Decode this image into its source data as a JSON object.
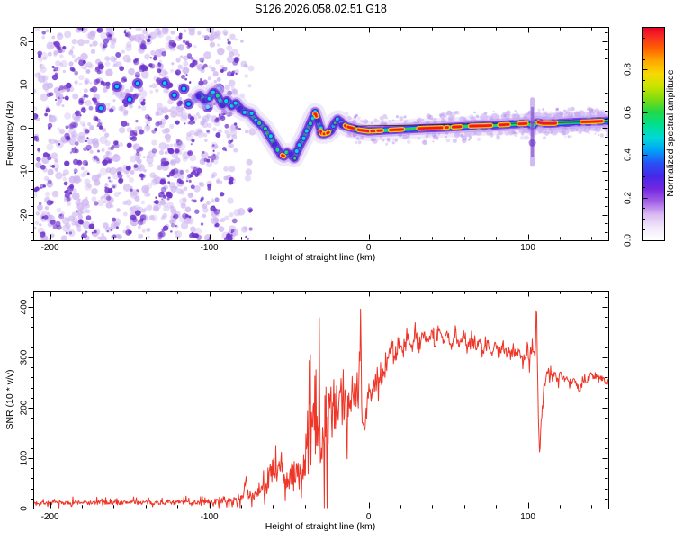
{
  "title": "S126.2026.058.02.51.G18",
  "chart_data": [
    {
      "type": "heatmap",
      "name": "doppler-spectrogram",
      "xlabel": "Height of straight line (km)",
      "ylabel": "Frequency (Hz)",
      "xlim": [
        -210.5,
        150.5
      ],
      "ylim": [
        -26,
        23
      ],
      "x_ticks": [
        {
          "label": "-200",
          "value": -200
        },
        {
          "label": "-100",
          "value": -100
        },
        {
          "label": "0",
          "value": 0
        },
        {
          "label": "100",
          "value": 100
        }
      ],
      "y_ticks": [
        {
          "label": "20",
          "value": 20
        },
        {
          "label": "10",
          "value": 10
        },
        {
          "label": "0",
          "value": 0
        },
        {
          "label": "-10",
          "value": -10
        },
        {
          "label": "-20",
          "value": -20
        }
      ],
      "x_minor_step": 20,
      "y_minor_step": 2,
      "colorbar": {
        "label": "Normalized spectral amplitude",
        "ticks": [
          {
            "label": "0.0",
            "value": 0.0
          },
          {
            "label": "0.2",
            "value": 0.2
          },
          {
            "label": "0.4",
            "value": 0.4
          },
          {
            "label": "0.6",
            "value": 0.6
          },
          {
            "label": "0.8",
            "value": 0.8
          }
        ],
        "minor_step": 0.05,
        "range": [
          0,
          1
        ],
        "stops": [
          {
            "p": 0.0,
            "c": "#ffffff"
          },
          {
            "p": 0.06,
            "c": "#f2e8fb"
          },
          {
            "p": 0.12,
            "c": "#d9bcf2"
          },
          {
            "p": 0.18,
            "c": "#a560e8"
          },
          {
            "p": 0.24,
            "c": "#7428e0"
          },
          {
            "p": 0.3,
            "c": "#4528e8"
          },
          {
            "p": 0.36,
            "c": "#2850f5"
          },
          {
            "p": 0.42,
            "c": "#00a0f8"
          },
          {
            "p": 0.48,
            "c": "#00d8d8"
          },
          {
            "p": 0.54,
            "c": "#00e090"
          },
          {
            "p": 0.6,
            "c": "#20d848"
          },
          {
            "p": 0.66,
            "c": "#7ddc10"
          },
          {
            "p": 0.72,
            "c": "#c8e400"
          },
          {
            "p": 0.78,
            "c": "#f8d800"
          },
          {
            "p": 0.84,
            "c": "#ffa800"
          },
          {
            "p": 0.9,
            "c": "#ff6000"
          },
          {
            "p": 0.95,
            "c": "#f83020"
          },
          {
            "p": 1.0,
            "c": "#e80028"
          }
        ]
      },
      "noise_region": {
        "x_range": [
          -210,
          -72
        ],
        "fade_start": -95,
        "light_count": 820,
        "dark_count": 300,
        "light_color": "#cdb4ee",
        "dark_color": "#7b3fd2"
      },
      "strong_blobs": [
        [
          -168,
          4.5
        ],
        [
          -158,
          9.5
        ],
        [
          -150,
          6.5
        ],
        [
          -145,
          10.2
        ],
        [
          -128,
          10.3
        ],
        [
          -122,
          7.5
        ],
        [
          -116,
          9
        ],
        [
          -113,
          5.5
        ],
        [
          -108,
          6.8
        ],
        [
          -101,
          4.8
        ],
        [
          -98,
          7.8
        ],
        [
          -94,
          9
        ]
      ],
      "ridge_path": [
        [
          -106,
          7.5
        ],
        [
          -103,
          6.5
        ],
        [
          -100,
          7
        ],
        [
          -97,
          8.2
        ],
        [
          -95,
          7.5
        ],
        [
          -92,
          5.5
        ],
        [
          -89,
          6.3
        ],
        [
          -86,
          5
        ],
        [
          -83,
          5.6
        ],
        [
          -80,
          4.2
        ],
        [
          -77,
          3.6
        ],
        [
          -74,
          3.2
        ],
        [
          -71,
          1.8
        ],
        [
          -68,
          0.8
        ],
        [
          -65,
          -0.3
        ],
        [
          -62,
          -2.2
        ],
        [
          -59,
          -3.8
        ],
        [
          -57,
          -5
        ],
        [
          -55,
          -6.2
        ],
        [
          -53,
          -6.6
        ],
        [
          -51,
          -5.8
        ],
        [
          -49,
          -6.2
        ],
        [
          -47,
          -6.9
        ],
        [
          -45,
          -5.6
        ],
        [
          -43,
          -4
        ],
        [
          -41,
          -2.6
        ],
        [
          -39,
          -1
        ],
        [
          -37,
          0.8
        ],
        [
          -35,
          2.4
        ],
        [
          -33.5,
          3.4
        ],
        [
          -32,
          1.8
        ],
        [
          -30.5,
          -0.2
        ],
        [
          -29.5,
          -1.4
        ],
        [
          -27.5,
          -1.4
        ],
        [
          -25.5,
          -1.2
        ],
        [
          -23.5,
          -0.6
        ],
        [
          -22,
          0.6
        ],
        [
          -20.5,
          1.4
        ],
        [
          -19,
          1.8
        ],
        [
          -17.5,
          1.4
        ],
        [
          -16,
          0.8
        ],
        [
          -14,
          0.3
        ],
        [
          -12,
          0.1
        ],
        [
          -10,
          -0.1
        ],
        [
          -8,
          -0.3
        ],
        [
          -6,
          -0.5
        ],
        [
          -4,
          -0.6
        ],
        [
          -2,
          -0.7
        ],
        [
          0,
          -0.8
        ],
        [
          5,
          -0.7
        ],
        [
          10,
          -0.6
        ],
        [
          15,
          -0.5
        ],
        [
          20,
          -0.4
        ],
        [
          25,
          -0.3
        ],
        [
          30,
          -0.2
        ],
        [
          35,
          -0.1
        ],
        [
          40,
          -0.05
        ],
        [
          45,
          0
        ],
        [
          50,
          0.1
        ],
        [
          55,
          0.2
        ],
        [
          60,
          0.3
        ],
        [
          65,
          0.4
        ],
        [
          70,
          0.45
        ],
        [
          75,
          0.5
        ],
        [
          80,
          0.6
        ],
        [
          85,
          0.7
        ],
        [
          90,
          0.8
        ],
        [
          95,
          0.9
        ],
        [
          100,
          1
        ],
        [
          101.5,
          0.7
        ],
        [
          103,
          0.4
        ],
        [
          104.5,
          0.8
        ],
        [
          106,
          1.3
        ],
        [
          108,
          1.1
        ],
        [
          110,
          1
        ],
        [
          115,
          1
        ],
        [
          120,
          1.1
        ],
        [
          125,
          1.2
        ],
        [
          130,
          1.3
        ],
        [
          135,
          1.35
        ],
        [
          140,
          1.4
        ],
        [
          145,
          1.5
        ],
        [
          151,
          1.6
        ]
      ],
      "hotspots": [
        [
          -54.2,
          -53.2
        ],
        [
          -33.8,
          -32.8
        ],
        [
          -30.1,
          -29.1
        ],
        [
          -28,
          -27.2
        ],
        [
          -25.9,
          -25.1
        ],
        [
          -14.8,
          -13.6
        ],
        [
          -12.8,
          -9.6
        ],
        [
          -6.4,
          0.6
        ],
        [
          1.8,
          4.6
        ],
        [
          5.8,
          8.2
        ],
        [
          13.6,
          21.4
        ],
        [
          31.4,
          46
        ],
        [
          48.6,
          49.6
        ],
        [
          53,
          57.8
        ],
        [
          63.8,
          76.8
        ],
        [
          82.2,
          87.8
        ],
        [
          94.5,
          99
        ],
        [
          106.5,
          117.5
        ],
        [
          134,
          146.5
        ]
      ],
      "smear": {
        "x": 102.8,
        "hz_top": 6.5,
        "hz_bottom": -8.5
      },
      "fit_line": {
        "from": [
          -13,
          0.35
        ],
        "to": [
          151,
          1.4
        ]
      },
      "seed": 42
    },
    {
      "type": "line",
      "name": "snr-profile",
      "xlabel": "Height of straight line (km)",
      "ylabel": "SNR (10 * v/v)",
      "xlim": [
        -210.5,
        150.5
      ],
      "ylim": [
        0,
        432
      ],
      "x_ticks": [
        {
          "label": "-200",
          "value": -200
        },
        {
          "label": "-100",
          "value": -100
        },
        {
          "label": "0",
          "value": 0
        },
        {
          "label": "100",
          "value": 100
        }
      ],
      "y_ticks": [
        {
          "label": "0",
          "value": 0
        },
        {
          "label": "100",
          "value": 100
        },
        {
          "label": "200",
          "value": 200
        },
        {
          "label": "300",
          "value": 300
        },
        {
          "label": "400",
          "value": 400
        }
      ],
      "x_minor_step": 20,
      "y_minor_step": 20,
      "line_color": "#ee3527",
      "step_km": 0.35,
      "seed": 7,
      "points": [
        [
          -210,
          11,
          6
        ],
        [
          -205,
          12,
          6
        ],
        [
          -200,
          11,
          6
        ],
        [
          -195,
          12,
          7
        ],
        [
          -190,
          11,
          6
        ],
        [
          -185,
          12,
          7
        ],
        [
          -180,
          12,
          6
        ],
        [
          -175,
          11,
          6
        ],
        [
          -170,
          12,
          7
        ],
        [
          -165,
          12,
          6
        ],
        [
          -160,
          12,
          7
        ],
        [
          -155,
          11,
          6
        ],
        [
          -150,
          13,
          7
        ],
        [
          -145,
          12,
          6
        ],
        [
          -140,
          12,
          7
        ],
        [
          -135,
          12,
          6
        ],
        [
          -130,
          12,
          7
        ],
        [
          -125,
          13,
          7
        ],
        [
          -120,
          12,
          7
        ],
        [
          -115,
          13,
          7
        ],
        [
          -110,
          12,
          7
        ],
        [
          -105,
          13,
          8
        ],
        [
          -100,
          13,
          8
        ],
        [
          -95,
          14,
          9
        ],
        [
          -90,
          14,
          9
        ],
        [
          -85,
          15,
          10
        ],
        [
          -81,
          17,
          11
        ],
        [
          -78.5,
          30,
          18
        ],
        [
          -77,
          58,
          14
        ],
        [
          -75.5,
          24,
          14
        ],
        [
          -73,
          26,
          16
        ],
        [
          -70,
          34,
          20
        ],
        [
          -67.5,
          48,
          28
        ],
        [
          -65,
          38,
          24
        ],
        [
          -62.5,
          60,
          36
        ],
        [
          -60,
          78,
          40
        ],
        [
          -57.5,
          62,
          40
        ],
        [
          -55,
          92,
          38
        ],
        [
          -53,
          60,
          34
        ],
        [
          -51,
          48,
          30
        ],
        [
          -49,
          58,
          34
        ],
        [
          -47,
          76,
          42
        ],
        [
          -45,
          70,
          44
        ],
        [
          -43,
          62,
          40
        ],
        [
          -41,
          80,
          52
        ],
        [
          -39,
          110,
          70
        ],
        [
          -37,
          140,
          100
        ],
        [
          -35,
          160,
          120
        ],
        [
          -33,
          185,
          135
        ],
        [
          -31,
          175,
          140
        ],
        [
          -29,
          180,
          130
        ],
        [
          -27,
          172,
          130
        ],
        [
          -25,
          180,
          122
        ],
        [
          -23,
          188,
          112
        ],
        [
          -21,
          186,
          100
        ],
        [
          -19,
          198,
          90
        ],
        [
          -17,
          204,
          84
        ],
        [
          -15,
          212,
          76
        ],
        [
          -13,
          218,
          70
        ],
        [
          -11,
          232,
          60
        ],
        [
          -9,
          228,
          58
        ],
        [
          -7,
          248,
          52
        ],
        [
          -5.6,
          300,
          50
        ],
        [
          -5,
          406,
          4
        ],
        [
          -4.4,
          210,
          46
        ],
        [
          -3.2,
          148,
          32
        ],
        [
          -2,
          176,
          38
        ],
        [
          -1,
          202,
          38
        ],
        [
          0,
          220,
          34
        ],
        [
          2,
          234,
          30
        ],
        [
          4,
          248,
          30
        ],
        [
          6,
          260,
          28
        ],
        [
          8,
          254,
          28
        ],
        [
          10,
          270,
          26
        ],
        [
          12,
          292,
          22
        ],
        [
          14.5,
          328,
          16
        ],
        [
          17,
          300,
          20
        ],
        [
          19.5,
          334,
          16
        ],
        [
          22,
          306,
          20
        ],
        [
          24.5,
          344,
          16
        ],
        [
          27,
          316,
          18
        ],
        [
          29.5,
          350,
          14
        ],
        [
          32,
          320,
          18
        ],
        [
          34.5,
          354,
          14
        ],
        [
          37,
          330,
          16
        ],
        [
          39.5,
          352,
          14
        ],
        [
          42,
          326,
          16
        ],
        [
          44.5,
          356,
          12
        ],
        [
          47,
          330,
          16
        ],
        [
          49.5,
          348,
          12
        ],
        [
          52,
          324,
          16
        ],
        [
          54.5,
          344,
          12
        ],
        [
          57,
          322,
          14
        ],
        [
          59.5,
          342,
          12
        ],
        [
          62,
          320,
          14
        ],
        [
          64.5,
          338,
          12
        ],
        [
          67,
          318,
          14
        ],
        [
          69.5,
          336,
          12
        ],
        [
          72,
          314,
          14
        ],
        [
          74.5,
          332,
          12
        ],
        [
          77,
          312,
          14
        ],
        [
          79.5,
          328,
          12
        ],
        [
          82,
          308,
          14
        ],
        [
          84.5,
          322,
          12
        ],
        [
          87,
          304,
          14
        ],
        [
          89.5,
          318,
          12
        ],
        [
          92,
          300,
          14
        ],
        [
          94.5,
          312,
          12
        ],
        [
          97,
          296,
          12
        ],
        [
          99.5,
          308,
          14
        ],
        [
          101,
          300,
          20
        ],
        [
          103,
          322,
          26
        ],
        [
          104.6,
          302,
          18
        ],
        [
          105.4,
          414,
          4
        ],
        [
          106.2,
          252,
          28
        ],
        [
          107.2,
          90,
          8
        ],
        [
          108.2,
          168,
          22
        ],
        [
          109.5,
          228,
          18
        ],
        [
          111,
          260,
          18
        ],
        [
          113,
          276,
          14
        ],
        [
          115,
          260,
          14
        ],
        [
          117,
          274,
          13
        ],
        [
          119,
          258,
          13
        ],
        [
          121,
          268,
          12
        ],
        [
          123,
          252,
          13
        ],
        [
          125,
          264,
          12
        ],
        [
          127,
          248,
          13
        ],
        [
          129,
          258,
          12
        ],
        [
          131,
          240,
          12
        ],
        [
          133,
          236,
          12
        ],
        [
          135,
          256,
          11
        ],
        [
          137,
          250,
          11
        ],
        [
          139,
          266,
          11
        ],
        [
          141,
          258,
          10
        ],
        [
          143,
          266,
          10
        ],
        [
          145,
          254,
          11
        ],
        [
          147,
          260,
          10
        ],
        [
          149,
          250,
          10
        ],
        [
          151,
          253,
          10
        ]
      ]
    }
  ]
}
